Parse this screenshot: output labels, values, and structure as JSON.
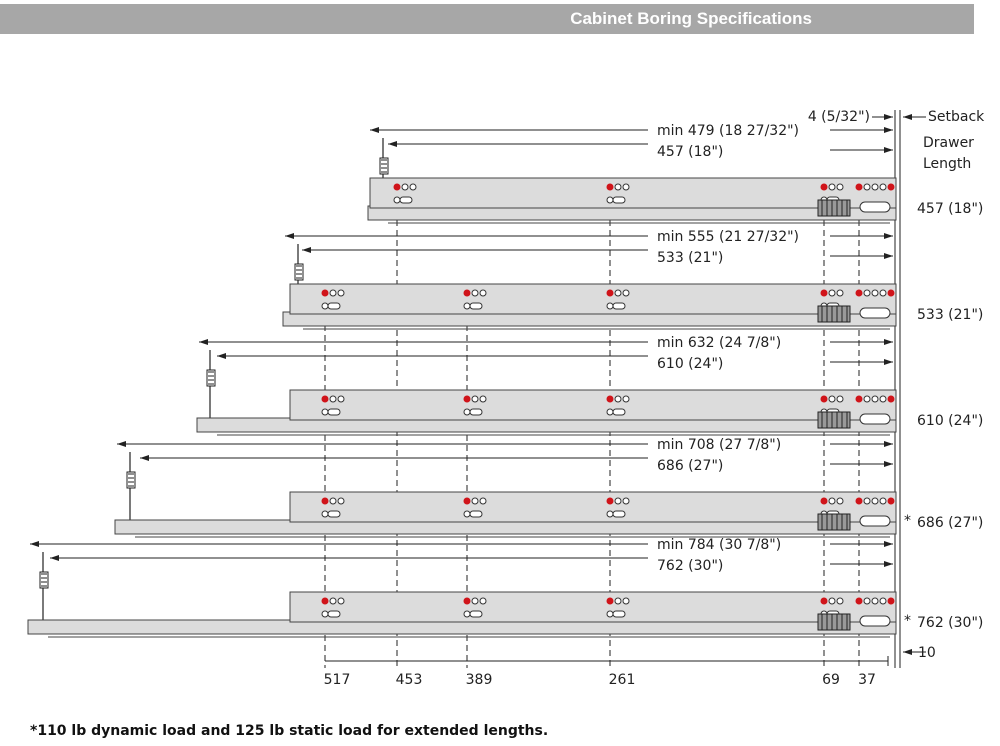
{
  "header": {
    "title": "Cabinet Boring Specifications",
    "bg_color": "#a7a7a7"
  },
  "labels": {
    "setback_value": "4 (5/32\")",
    "setback_label": "Setback",
    "drawer_label": "Drawer",
    "length_label": "Length",
    "bottom_offset": "10"
  },
  "rows": [
    {
      "min": "min 479 (18 27/32\")",
      "nominal": "457 (18\")",
      "length": "457 (18\")",
      "star": ""
    },
    {
      "min": "min 555 (21 27/32\")",
      "nominal": "533 (21\")",
      "length": "533 (21\")",
      "star": ""
    },
    {
      "min": "min 632 (24 7/8\")",
      "nominal": "610 (24\")",
      "length": "610 (24\")",
      "star": ""
    },
    {
      "min": "min 708 (27 7/8\")",
      "nominal": "686 (27\")",
      "length": "686 (27\")",
      "star": "*"
    },
    {
      "min": "min 784 (30 7/8\")",
      "nominal": "762 (30\")",
      "length": "762 (30\")",
      "star": "*"
    }
  ],
  "bottom_dims": [
    "517",
    "453",
    "389",
    "261",
    "69",
    "37"
  ],
  "footnote": "*110 lb dynamic load and 125 lb static load for extended lengths.",
  "colors": {
    "hole": "#d0141a",
    "rail": "#dcdcdc",
    "rail_stroke": "#444"
  }
}
